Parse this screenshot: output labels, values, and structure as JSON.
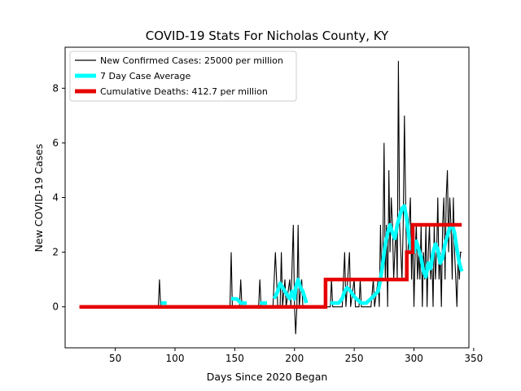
{
  "chart_data": {
    "type": "line",
    "title": "COVID-19 Stats For Nicholas County, KY",
    "xlabel": "Days Since 2020 Began",
    "ylabel": "New COVID-19 Cases",
    "xlim": [
      8,
      346
    ],
    "ylim": [
      -1.5,
      9.5
    ],
    "xticks": [
      50,
      100,
      150,
      200,
      250,
      300,
      350
    ],
    "yticks": [
      0,
      2,
      4,
      6,
      8
    ],
    "grid": false,
    "legend_position": "top-left",
    "series": [
      {
        "name": "New Confirmed Cases: 25000 per million",
        "color": "#000000",
        "kind": "thin-line",
        "points": [
          [
            20,
            0
          ],
          [
            86,
            0
          ],
          [
            87,
            1
          ],
          [
            88,
            0
          ],
          [
            146,
            0
          ],
          [
            147,
            2
          ],
          [
            148,
            0
          ],
          [
            154,
            0
          ],
          [
            155,
            1
          ],
          [
            156,
            0
          ],
          [
            170,
            0
          ],
          [
            171,
            1
          ],
          [
            172,
            0
          ],
          [
            182,
            0
          ],
          [
            184,
            2
          ],
          [
            186,
            0
          ],
          [
            188,
            0
          ],
          [
            189,
            2
          ],
          [
            190,
            0
          ],
          [
            192,
            1
          ],
          [
            193,
            0
          ],
          [
            196,
            1
          ],
          [
            197,
            0
          ],
          [
            199,
            3
          ],
          [
            200,
            0
          ],
          [
            201,
            -1
          ],
          [
            202,
            0
          ],
          [
            203,
            3
          ],
          [
            204,
            0
          ],
          [
            206,
            1
          ],
          [
            207,
            0
          ],
          [
            225,
            0
          ],
          [
            230,
            0
          ],
          [
            231,
            1
          ],
          [
            232,
            0
          ],
          [
            240,
            0
          ],
          [
            241,
            1
          ],
          [
            242,
            2
          ],
          [
            243,
            0
          ],
          [
            246,
            2
          ],
          [
            247,
            0
          ],
          [
            250,
            1
          ],
          [
            251,
            0
          ],
          [
            254,
            0
          ],
          [
            255,
            1
          ],
          [
            256,
            0
          ],
          [
            264,
            0
          ],
          [
            266,
            1
          ],
          [
            267,
            0
          ],
          [
            270,
            1
          ],
          [
            271,
            0
          ],
          [
            272,
            3
          ],
          [
            273,
            1
          ],
          [
            274,
            2
          ],
          [
            275,
            6
          ],
          [
            276,
            1
          ],
          [
            277,
            3
          ],
          [
            278,
            0
          ],
          [
            279,
            5
          ],
          [
            280,
            2
          ],
          [
            281,
            4
          ],
          [
            282,
            3
          ],
          [
            283,
            1
          ],
          [
            284,
            2
          ],
          [
            285,
            3
          ],
          [
            286,
            1
          ],
          [
            287,
            9
          ],
          [
            288,
            3
          ],
          [
            289,
            2
          ],
          [
            290,
            1
          ],
          [
            291,
            3
          ],
          [
            292,
            7
          ],
          [
            293,
            4
          ],
          [
            294,
            1
          ],
          [
            295,
            2
          ],
          [
            296,
            3
          ],
          [
            297,
            4
          ],
          [
            298,
            1
          ],
          [
            299,
            3
          ],
          [
            300,
            0
          ],
          [
            301,
            2
          ],
          [
            302,
            3
          ],
          [
            303,
            1
          ],
          [
            304,
            2
          ],
          [
            305,
            1
          ],
          [
            306,
            3
          ],
          [
            307,
            0
          ],
          [
            308,
            2
          ],
          [
            309,
            1
          ],
          [
            310,
            3
          ],
          [
            311,
            0
          ],
          [
            312,
            2
          ],
          [
            313,
            3
          ],
          [
            314,
            1
          ],
          [
            315,
            2
          ],
          [
            316,
            0
          ],
          [
            317,
            3
          ],
          [
            318,
            1
          ],
          [
            319,
            2
          ],
          [
            320,
            4
          ],
          [
            321,
            1
          ],
          [
            322,
            2
          ],
          [
            323,
            0
          ],
          [
            324,
            3
          ],
          [
            325,
            4
          ],
          [
            326,
            1
          ],
          [
            327,
            4
          ],
          [
            328,
            5
          ],
          [
            329,
            2
          ],
          [
            330,
            4
          ],
          [
            331,
            3
          ],
          [
            332,
            1
          ],
          [
            333,
            4
          ],
          [
            334,
            2
          ],
          [
            335,
            1
          ],
          [
            336,
            0
          ],
          [
            337,
            2
          ],
          [
            338,
            1
          ],
          [
            339,
            2
          ],
          [
            340,
            2
          ]
        ]
      },
      {
        "name": "7 Day Case Average",
        "color": "#00ffff",
        "kind": "thick-line",
        "segments": [
          [
            [
              88,
              0.14
            ],
            [
              93,
              0.14
            ]
          ],
          [
            [
              147,
              0.3
            ],
            [
              152,
              0.28
            ],
            [
              155,
              0.14
            ],
            [
              160,
              0.14
            ]
          ],
          [
            [
              171,
              0.14
            ],
            [
              177,
              0.14
            ]
          ],
          [
            [
              183,
              0.3
            ],
            [
              186,
              0.57
            ],
            [
              188,
              0.86
            ],
            [
              190,
              0.71
            ],
            [
              192,
              0.57
            ],
            [
              194,
              0.43
            ],
            [
              196,
              0.3
            ],
            [
              198,
              0.57
            ],
            [
              200,
              0.29
            ],
            [
              201,
              0.71
            ],
            [
              203,
              1.0
            ],
            [
              205,
              0.71
            ],
            [
              207,
              0.57
            ],
            [
              210,
              0.14
            ]
          ],
          [
            [
              230,
              0.14
            ],
            [
              237,
              0.14
            ],
            [
              240,
              0.3
            ],
            [
              242,
              0.57
            ],
            [
              244,
              0.71
            ],
            [
              247,
              0.57
            ],
            [
              249,
              0.43
            ],
            [
              252,
              0.28
            ],
            [
              256,
              0.14
            ],
            [
              260,
              0.14
            ],
            [
              264,
              0.3
            ],
            [
              267,
              0.43
            ],
            [
              270,
              0.57
            ],
            [
              272,
              1.0
            ],
            [
              274,
              1.6
            ],
            [
              276,
              2.3
            ],
            [
              278,
              2.7
            ],
            [
              280,
              3.0
            ],
            [
              282,
              2.7
            ],
            [
              284,
              2.5
            ],
            [
              286,
              3.0
            ],
            [
              288,
              3.3
            ],
            [
              290,
              3.6
            ],
            [
              292,
              3.7
            ],
            [
              294,
              3.2
            ],
            [
              296,
              2.5
            ],
            [
              298,
              2.0
            ],
            [
              300,
              2.0
            ],
            [
              302,
              2.4
            ],
            [
              304,
              2.1
            ],
            [
              306,
              1.8
            ],
            [
              308,
              1.3
            ],
            [
              310,
              1.1
            ],
            [
              312,
              1.6
            ],
            [
              314,
              1.4
            ],
            [
              316,
              2.0
            ],
            [
              318,
              2.3
            ],
            [
              320,
              2.1
            ],
            [
              322,
              1.6
            ],
            [
              324,
              1.8
            ],
            [
              326,
              2.3
            ],
            [
              328,
              2.6
            ],
            [
              330,
              2.9
            ],
            [
              332,
              3.0
            ],
            [
              334,
              2.7
            ],
            [
              336,
              2.1
            ],
            [
              338,
              1.6
            ],
            [
              340,
              1.3
            ]
          ]
        ]
      },
      {
        "name": "Cumulative Deaths: 412.7 per million",
        "color": "#e60000",
        "kind": "step-line",
        "points": [
          [
            20,
            0
          ],
          [
            226,
            0
          ],
          [
            226,
            1
          ],
          [
            294,
            1
          ],
          [
            294,
            2
          ],
          [
            299,
            2
          ],
          [
            299,
            3
          ],
          [
            340,
            3
          ]
        ]
      }
    ]
  }
}
